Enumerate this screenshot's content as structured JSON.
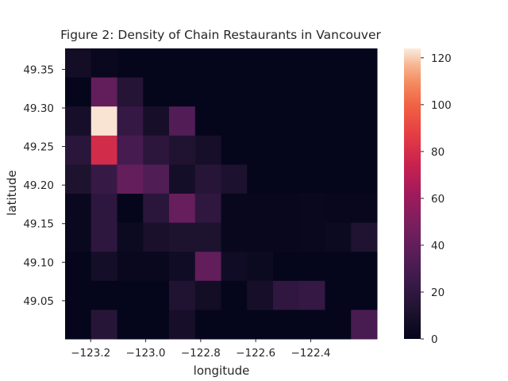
{
  "chart_data": {
    "type": "heatmap",
    "title": "Figure 2: Density of Chain Restaurants in Vancouver",
    "xlabel": "longitude",
    "ylabel": "latitude",
    "x_ticks": [
      {
        "value": -123.2,
        "label": "−123.2"
      },
      {
        "value": -123.0,
        "label": "−123.0"
      },
      {
        "value": -122.8,
        "label": "−122.8"
      },
      {
        "value": -122.6,
        "label": "−122.6"
      },
      {
        "value": -122.4,
        "label": "−122.4"
      }
    ],
    "y_ticks": [
      {
        "value": 49.35,
        "label": "49.35"
      },
      {
        "value": 49.3,
        "label": "49.30"
      },
      {
        "value": 49.25,
        "label": "49.25"
      },
      {
        "value": 49.2,
        "label": "49.20"
      },
      {
        "value": 49.15,
        "label": "49.15"
      },
      {
        "value": 49.1,
        "label": "49.10"
      },
      {
        "value": 49.05,
        "label": "49.05"
      }
    ],
    "xlim": [
      -123.293,
      -122.159
    ],
    "ylim": [
      49.0005,
      49.3772
    ],
    "grid": false,
    "colormap": "rocket",
    "colorbar": {
      "range": [
        0,
        124
      ],
      "ticks": [
        {
          "value": 0,
          "label": "0"
        },
        {
          "value": 20,
          "label": "20"
        },
        {
          "value": 40,
          "label": "40"
        },
        {
          "value": 60,
          "label": "60"
        },
        {
          "value": 80,
          "label": "80"
        },
        {
          "value": 100,
          "label": "100"
        },
        {
          "value": 120,
          "label": "120"
        }
      ]
    },
    "rows_top_to_bottom": [
      [
        7,
        3,
        1,
        1,
        1,
        1,
        1,
        1,
        1,
        1,
        1,
        1
      ],
      [
        1,
        40,
        15,
        1,
        1,
        1,
        1,
        1,
        1,
        1,
        1,
        1
      ],
      [
        9,
        123,
        22,
        9,
        34,
        1,
        1,
        1,
        1,
        1,
        1,
        1
      ],
      [
        17,
        79,
        29,
        18,
        13,
        9,
        1,
        1,
        1,
        1,
        1,
        1
      ],
      [
        12,
        23,
        41,
        33,
        8,
        16,
        11,
        1,
        1,
        1,
        1,
        1
      ],
      [
        3,
        19,
        1,
        17,
        42,
        20,
        2,
        2,
        2,
        3,
        2,
        2
      ],
      [
        3,
        19,
        4,
        10,
        12,
        12,
        2,
        2,
        2,
        3,
        4,
        13
      ],
      [
        1,
        8,
        3,
        3,
        6,
        40,
        6,
        4,
        1,
        1,
        1,
        1
      ],
      [
        1,
        1,
        1,
        1,
        13,
        7,
        1,
        9,
        20,
        22,
        1,
        1
      ],
      [
        1,
        16,
        1,
        1,
        9,
        1,
        1,
        1,
        1,
        1,
        1,
        30
      ]
    ]
  }
}
